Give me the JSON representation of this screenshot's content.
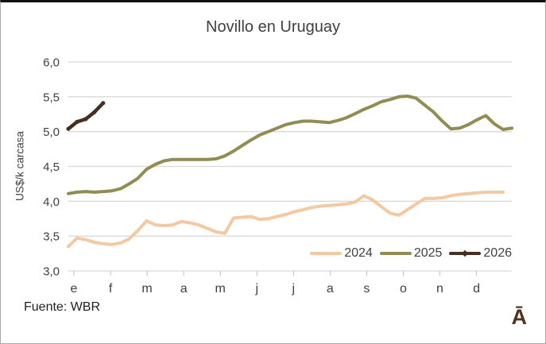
{
  "title": "Novillo en Uruguay",
  "source": "Fuente: WBR",
  "logo_text": "Ā",
  "colors": {
    "grid": "#d9d9d9",
    "axis": "#bfbfbf",
    "text": "#404040",
    "logo_brown": "#4f3423"
  },
  "chart_data": {
    "type": "line",
    "title": "Novillo en Uruguay",
    "xlabel": "",
    "ylabel": "US$/k carcasa",
    "ylim": [
      3.0,
      6.0
    ],
    "ytick_step": 0.5,
    "y_tick_labels": [
      "3,0",
      "3,5",
      "4,0",
      "4,5",
      "5,0",
      "5,5",
      "6,0"
    ],
    "x_tick_labels": [
      "e",
      "f",
      "m",
      "a",
      "m",
      "j",
      "j",
      "a",
      "s",
      "o",
      "n",
      "d"
    ],
    "grid": "horizontal",
    "legend_position": "bottom-right-inside",
    "series": [
      {
        "name": "2024",
        "color": "#f2c9a1",
        "marker": false,
        "values": [
          3.35,
          3.47,
          3.45,
          3.41,
          3.39,
          3.38,
          3.4,
          3.46,
          3.58,
          3.72,
          3.66,
          3.65,
          3.66,
          3.71,
          3.69,
          3.66,
          3.61,
          3.56,
          3.54,
          3.76,
          3.77,
          3.78,
          3.74,
          3.75,
          3.78,
          3.81,
          3.85,
          3.88,
          3.91,
          3.93,
          3.94,
          3.95,
          3.96,
          3.99,
          4.08,
          4.02,
          3.92,
          3.83,
          3.8,
          3.88,
          3.96,
          4.04,
          4.04,
          4.05,
          4.08,
          4.1,
          4.11,
          4.12,
          4.13,
          4.13,
          4.13
        ]
      },
      {
        "name": "2025",
        "color": "#918c52",
        "marker": false,
        "values": [
          4.11,
          4.13,
          4.14,
          4.13,
          4.14,
          4.15,
          4.18,
          4.25,
          4.33,
          4.46,
          4.53,
          4.58,
          4.6,
          4.6,
          4.6,
          4.6,
          4.6,
          4.61,
          4.65,
          4.72,
          4.8,
          4.88,
          4.95,
          5.0,
          5.05,
          5.1,
          5.13,
          5.15,
          5.15,
          5.14,
          5.13,
          5.16,
          5.2,
          5.26,
          5.32,
          5.37,
          5.43,
          5.46,
          5.5,
          5.51,
          5.48,
          5.38,
          5.28,
          5.15,
          5.04,
          5.05,
          5.1,
          5.17,
          5.23,
          5.11,
          5.03,
          5.05
        ]
      },
      {
        "name": "2026",
        "color": "#452f20",
        "marker": true,
        "values": [
          5.04,
          5.14,
          5.18,
          5.28,
          5.41
        ]
      }
    ]
  }
}
